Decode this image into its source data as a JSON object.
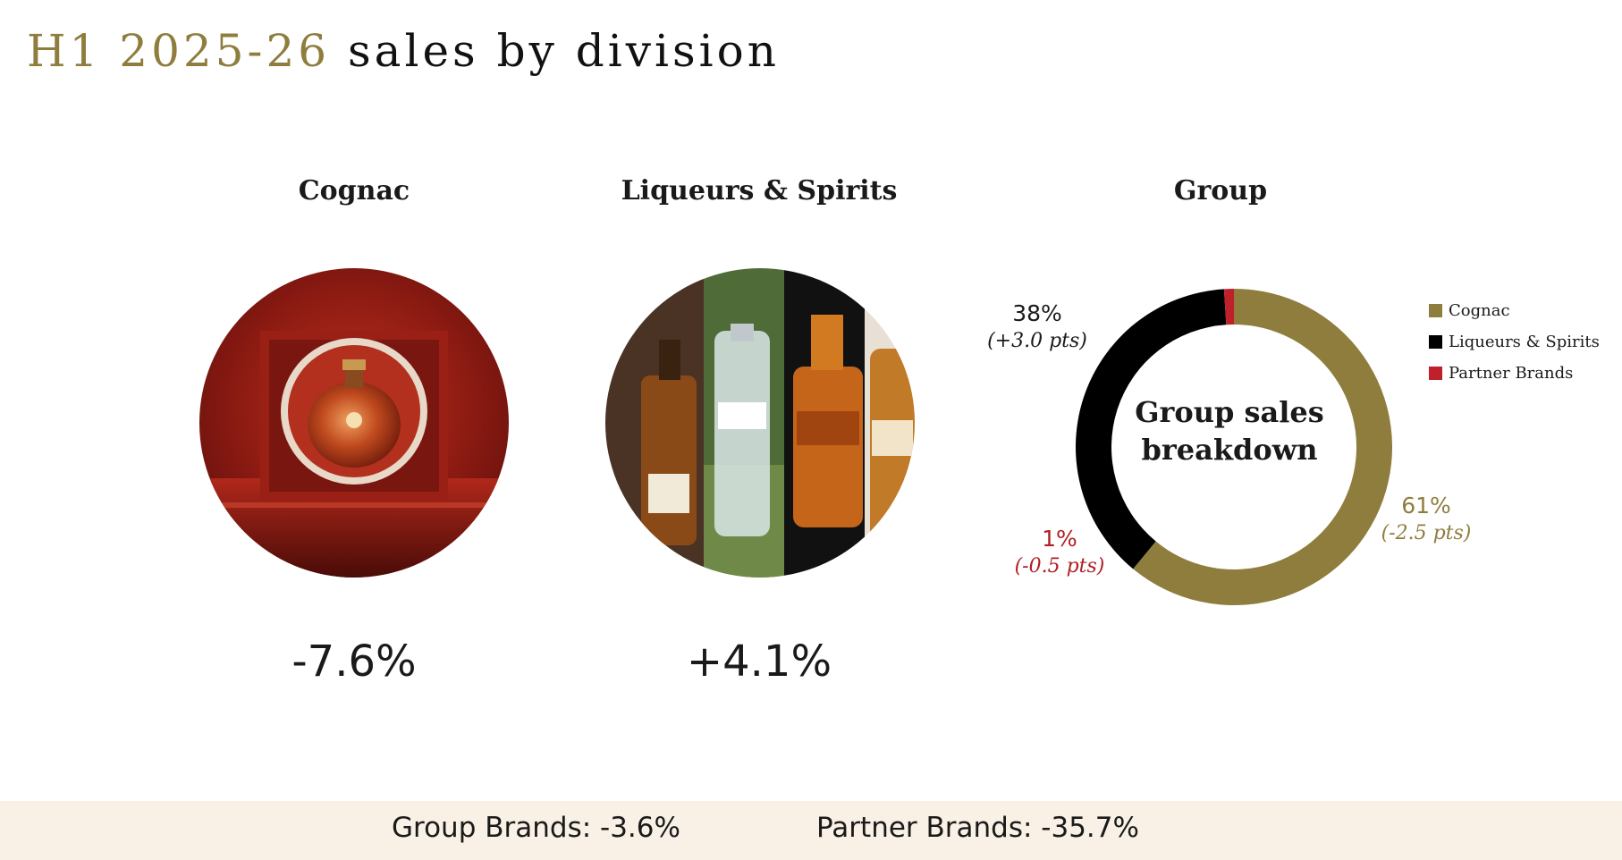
{
  "title": {
    "accent": "H1 2025-26",
    "rest": "sales by division"
  },
  "divisions": [
    {
      "name": "Cognac",
      "growth": "-7.6%",
      "image": "louis-xiii-decanter-photo"
    },
    {
      "name": "Liqueurs & Spirits",
      "growth": "+4.1%",
      "image": "liqueurs-spirits-bottles-photo"
    }
  ],
  "group": {
    "heading": "Group",
    "center_line1": "Group sales",
    "center_line2": "breakdown"
  },
  "colors": {
    "accent": "#8f7d3e",
    "cognac": "#8f7d3e",
    "liqueurs": "#000000",
    "partner": "#c0202a",
    "footer_bg": "#f9f1e6"
  },
  "chart_data": {
    "type": "pie",
    "title": "Group",
    "center_text": "Group sales breakdown",
    "legend_position": "right",
    "series": [
      {
        "name": "Cognac",
        "value": 61,
        "label": "61%",
        "change": "(-2.5 pts)",
        "color": "#8f7d3e"
      },
      {
        "name": "Liqueurs & Spirits",
        "value": 38,
        "label": "38%",
        "change": "(+3.0 pts)",
        "color": "#000000"
      },
      {
        "name": "Partner Brands",
        "value": 1,
        "label": "1%",
        "change": "(-0.5 pts)",
        "color": "#c0202a"
      }
    ]
  },
  "footer": {
    "group_brands": "Group Brands: -3.6%",
    "partner_brands": "Partner Brands: -35.7%"
  }
}
